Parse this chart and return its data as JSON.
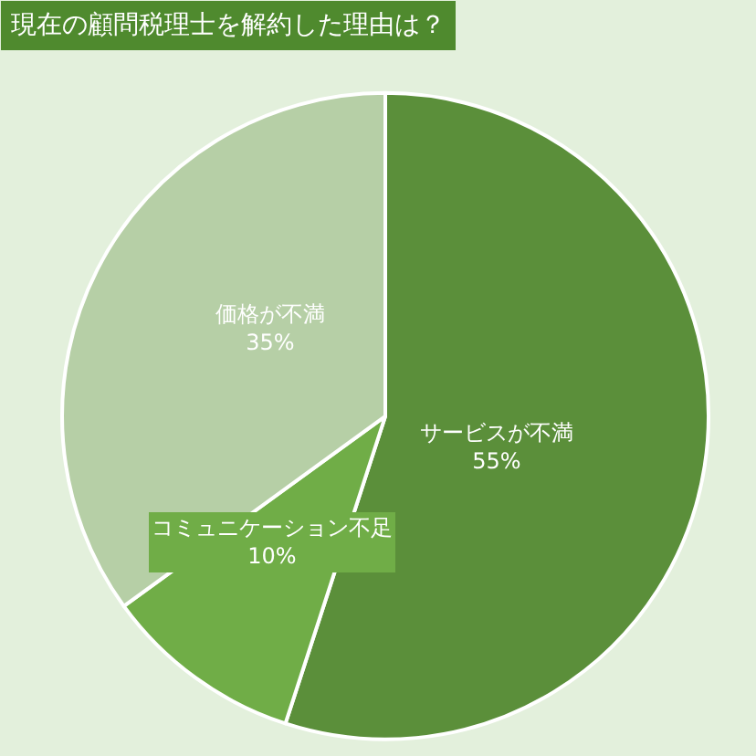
{
  "chart_data": {
    "type": "pie",
    "title": "現在の顧問税理士を解約した理由は？",
    "categories": [
      "サービスが不満",
      "コミュニケーション不足",
      "価格が不満"
    ],
    "values": [
      55,
      10,
      35
    ],
    "value_labels": [
      "55%",
      "10%",
      "35%"
    ],
    "colors": [
      "#5b8f3a",
      "#70ad47",
      "#b6cfa6"
    ],
    "legend": false
  }
}
